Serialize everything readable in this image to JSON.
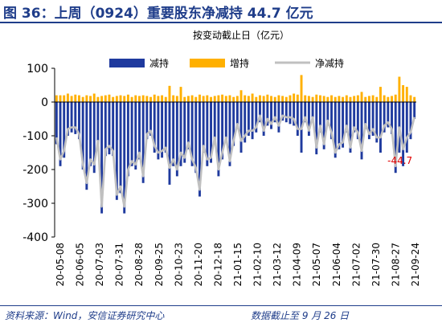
{
  "title": "图 36：上周（0924）重要股东净减持 44.7 亿元",
  "footer": {
    "source": "资料来源：Wind，安信证券研究中心",
    "deadline": "数据截止至 9 月 26 日"
  },
  "chart_data": {
    "type": "bar",
    "subtitle": "按变动截止日（亿元）",
    "ylim": [
      -400,
      100
    ],
    "yticks": [
      100,
      0,
      -100,
      -200,
      -300,
      -400
    ],
    "xtick_labels": [
      "20-05-08",
      "20-06-05",
      "20-07-03",
      "20-07-31",
      "20-08-28",
      "20-09-25",
      "20-10-23",
      "20-11-20",
      "20-12-18",
      "21-01-15",
      "21-02-10",
      "21-03-12",
      "21-04-09",
      "21-05-07",
      "21-06-04",
      "21-07-02",
      "21-07-30",
      "21-08-27",
      "21-09-24"
    ],
    "annotation": "-44.7",
    "colors": {
      "reduce": "#1f3a9e",
      "increase": "#ffb000",
      "net": "#c0c0c0",
      "annotation": "#e00000"
    },
    "series": [
      {
        "name": "减持",
        "values": [
          -125,
          -190,
          -165,
          -100,
          -90,
          -95,
          -110,
          -200,
          -260,
          -190,
          -210,
          -130,
          -330,
          -160,
          -155,
          -160,
          -290,
          -270,
          -330,
          -220,
          -190,
          -200,
          -170,
          -240,
          -110,
          -100,
          -150,
          -170,
          -165,
          -150,
          -245,
          -190,
          -220,
          -190,
          -180,
          -140,
          -190,
          -210,
          -280,
          -150,
          -190,
          -180,
          -120,
          -220,
          -170,
          -120,
          -190,
          -130,
          -80,
          -150,
          -120,
          -100,
          -110,
          -90,
          -60,
          -100,
          -70,
          -80,
          -60,
          -90,
          -55,
          -60,
          -65,
          -70,
          -100,
          -150,
          -60,
          -100,
          -60,
          -155,
          -90,
          -140,
          -70,
          -110,
          -165,
          -140,
          -135,
          -90,
          -150,
          -90,
          -110,
          -170,
          -80,
          -110,
          -100,
          -120,
          -150,
          -90,
          -75,
          -95,
          -210,
          -150,
          -190,
          -150,
          -110,
          -50
        ]
      },
      {
        "name": "增持",
        "values": [
          20,
          20,
          20,
          25,
          18,
          22,
          20,
          15,
          20,
          18,
          25,
          15,
          18,
          20,
          22,
          15,
          18,
          20,
          18,
          22,
          15,
          20,
          18,
          20,
          18,
          15,
          22,
          18,
          20,
          15,
          48,
          20,
          18,
          45,
          15,
          18,
          20,
          15,
          22,
          18,
          20,
          15,
          18,
          20,
          22,
          18,
          20,
          15,
          18,
          35,
          20,
          18,
          25,
          15,
          20,
          18,
          22,
          18,
          15,
          20,
          18,
          15,
          20,
          25,
          22,
          80,
          20,
          18,
          15,
          22,
          20,
          18,
          15,
          20,
          15,
          18,
          15,
          20,
          15,
          18,
          20,
          30,
          15,
          18,
          20,
          15,
          45,
          20,
          15,
          18,
          22,
          75,
          50,
          45,
          20,
          15
        ]
      },
      {
        "name": "净减持",
        "values": [
          -105,
          -170,
          -145,
          -80,
          -75,
          -75,
          -95,
          -185,
          -240,
          -170,
          -185,
          -115,
          -310,
          -140,
          -130,
          -145,
          -275,
          -250,
          -310,
          -200,
          -175,
          -185,
          -150,
          -220,
          -95,
          -85,
          -130,
          -150,
          -145,
          -135,
          -195,
          -170,
          -200,
          -150,
          -165,
          -120,
          -170,
          -195,
          -260,
          -130,
          -170,
          -165,
          -105,
          -200,
          -150,
          -105,
          -175,
          -115,
          -65,
          -115,
          -100,
          -85,
          -85,
          -75,
          -40,
          -85,
          -50,
          -65,
          -45,
          -70,
          -40,
          -45,
          -45,
          -50,
          -80,
          -80,
          -45,
          -85,
          -45,
          -135,
          -70,
          -125,
          -55,
          -90,
          -150,
          -125,
          -120,
          -70,
          -135,
          -75,
          -90,
          -145,
          -65,
          -95,
          -80,
          -105,
          -105,
          -70,
          -60,
          -80,
          -190,
          -75,
          -140,
          -105,
          -90,
          -44.7
        ]
      }
    ]
  }
}
